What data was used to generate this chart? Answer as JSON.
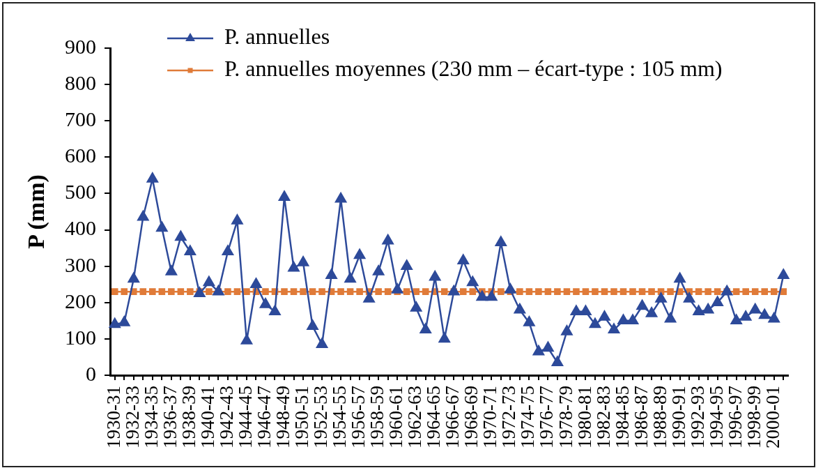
{
  "chart_data": {
    "type": "line",
    "ylabel": "P (mm)",
    "categories": [
      "1930-31",
      null,
      "1932-33",
      null,
      "1934-35",
      null,
      "1936-37",
      null,
      "1938-39",
      null,
      "1940-41",
      null,
      "1942-43",
      null,
      "1944-45",
      null,
      "1946-47",
      null,
      "1948-49",
      null,
      "1950-51",
      null,
      "1952-53",
      null,
      "1954-55",
      null,
      "1956-57",
      null,
      "1958-59",
      null,
      "1960-61",
      null,
      "1962-63",
      null,
      "1964-65",
      null,
      "1966-67",
      null,
      "1968-69",
      null,
      "1970-71",
      null,
      "1972-73",
      null,
      "1974-75",
      null,
      "1976-77",
      null,
      "1978-79",
      null,
      "1980-81",
      null,
      "1982-83",
      null,
      "1984-85",
      null,
      "1986-87",
      null,
      "1988-89",
      null,
      "1990-91",
      null,
      "1992-93",
      null,
      "1994-95",
      null,
      "1996-97",
      null,
      "1998-99",
      null,
      "2000-01",
      null
    ],
    "series": [
      {
        "name": "P. annuelles",
        "color": "#2d4a9a",
        "marker": "triangle",
        "values": [
          140,
          145,
          265,
          435,
          540,
          405,
          285,
          380,
          340,
          225,
          255,
          230,
          340,
          425,
          95,
          250,
          195,
          175,
          490,
          295,
          310,
          135,
          85,
          275,
          485,
          265,
          330,
          210,
          285,
          370,
          235,
          300,
          185,
          125,
          270,
          100,
          230,
          315,
          255,
          215,
          215,
          365,
          235,
          180,
          145,
          65,
          75,
          35,
          120,
          175,
          175,
          140,
          160,
          125,
          150,
          150,
          190,
          170,
          210,
          155,
          265,
          210,
          175,
          180,
          200,
          230,
          150,
          160,
          180,
          165,
          155,
          275
        ]
      },
      {
        "name": "P. annuelles moyennes (230 mm – écart-type : 105 mm)",
        "color": "#e07b39",
        "marker": "square",
        "values": [
          230,
          230,
          230,
          230,
          230,
          230,
          230,
          230,
          230,
          230,
          230,
          230,
          230,
          230,
          230,
          230,
          230,
          230,
          230,
          230,
          230,
          230,
          230,
          230,
          230,
          230,
          230,
          230,
          230,
          230,
          230,
          230,
          230,
          230,
          230,
          230,
          230,
          230,
          230,
          230,
          230,
          230,
          230,
          230,
          230,
          230,
          230,
          230,
          230,
          230,
          230,
          230,
          230,
          230,
          230,
          230,
          230,
          230,
          230,
          230,
          230,
          230,
          230,
          230,
          230,
          230,
          230,
          230,
          230,
          230,
          230,
          230
        ]
      }
    ],
    "ylim": [
      0,
      900
    ],
    "yticks": [
      0,
      100,
      200,
      300,
      400,
      500,
      600,
      700,
      800,
      900
    ],
    "grid": false,
    "legend": "top left"
  }
}
